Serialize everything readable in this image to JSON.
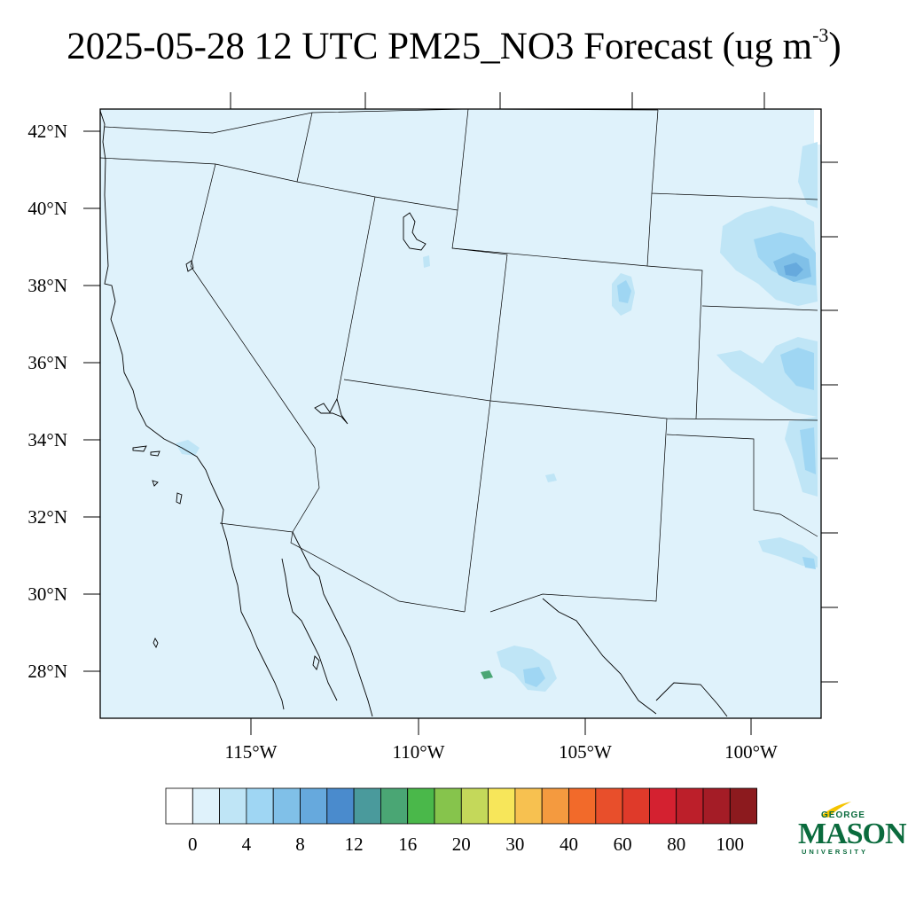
{
  "title": {
    "main": "2025-05-28 12 UTC PM25_NO3 Forecast (ug m",
    "exponent": "-3",
    "close": ")"
  },
  "map": {
    "variable": "PM25_NO3",
    "units": "ug m-3",
    "valid_time": "2025-05-28 12 UTC",
    "background_color": "#dff2fb",
    "lat_labels": [
      "42°N",
      "40°N",
      "38°N",
      "36°N",
      "34°N",
      "32°N",
      "30°N",
      "28°N"
    ],
    "lon_labels": [
      "115°W",
      "110°W",
      "105°W",
      "100°W"
    ]
  },
  "colorbar": {
    "colors": [
      "#ffffff",
      "#dff2fb",
      "#bfe5f6",
      "#9fd6f3",
      "#80c0e8",
      "#66a9dd",
      "#4a8bcd",
      "#4a9a9c",
      "#4aa674",
      "#4ab84a",
      "#86c44c",
      "#c4d85a",
      "#f7e65a",
      "#f7c150",
      "#f49a3f",
      "#f26a2a",
      "#e84f2b",
      "#df3a2a",
      "#d42130",
      "#bc1f2a",
      "#a41c26",
      "#8c1a1e"
    ],
    "labels": [
      "0",
      "4",
      "8",
      "12",
      "16",
      "20",
      "30",
      "40",
      "60",
      "80",
      "100"
    ]
  },
  "logo": {
    "line1": "GEORGE",
    "line2": "MASON",
    "line3": "UNIVERSITY",
    "color": "#0a6b3d",
    "accent": "#f5c400"
  }
}
